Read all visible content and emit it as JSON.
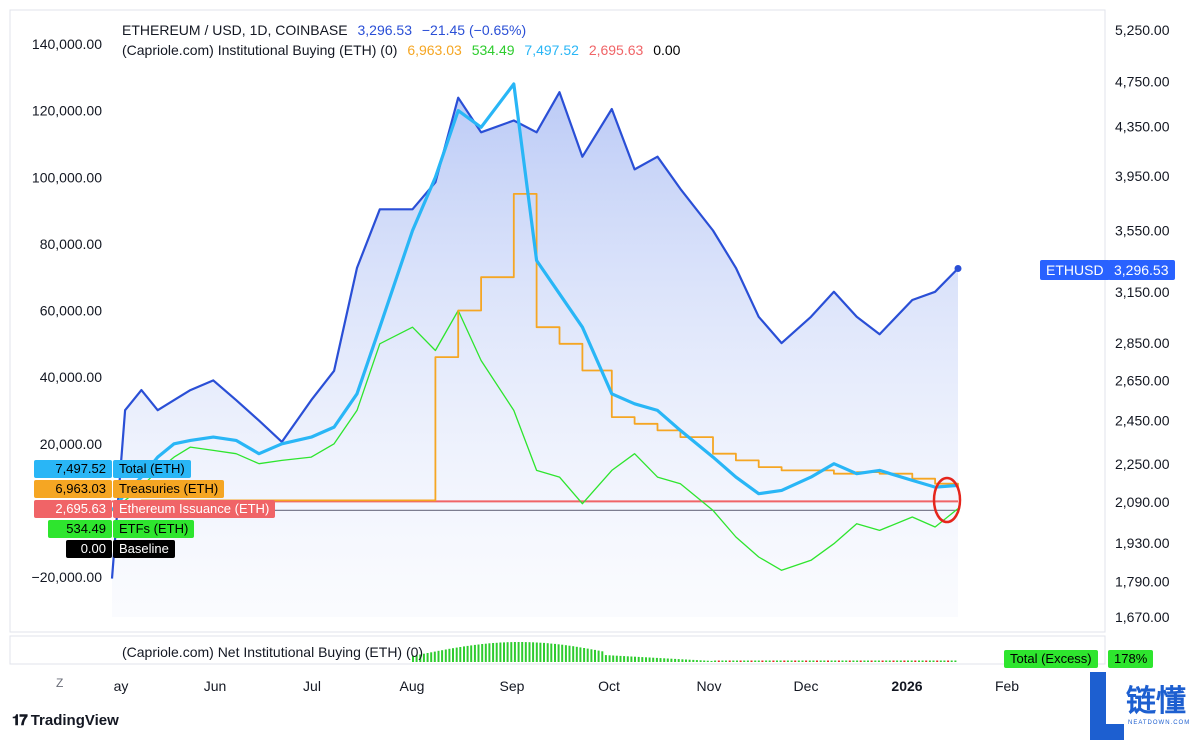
{
  "header": {
    "symbol": "ETHEREUM / USD, 1D, COINBASE",
    "price": "3,296.53",
    "change": "−21.45 (−0.65%)",
    "indicator": "(Capriole.com) Institutional Buying (ETH) (0)",
    "ind_values": [
      "6,963.03",
      "534.49",
      "7,497.52",
      "2,695.63",
      "0.00"
    ]
  },
  "legend_tags": [
    {
      "value": "7,497.52",
      "label": "Total (ETH)",
      "color": "#29b6f6"
    },
    {
      "value": "6,963.03",
      "label": "Treasuries (ETH)",
      "color": "#f5a623"
    },
    {
      "value": "2,695.63",
      "label": "Ethereum Issuance (ETH)",
      "color": "#f06467"
    },
    {
      "value": "534.49",
      "label": "ETFs (ETH)",
      "color": "#2ee52e"
    },
    {
      "value": "0.00",
      "label": "Baseline",
      "color": "#000000"
    }
  ],
  "price_tag": {
    "symbol": "ETHUSD",
    "value": "3,296.53",
    "color": "#2962ff"
  },
  "sub_pane": {
    "label": "(Capriole.com) Net Institutional Buying (ETH) (0)",
    "right_label": "Total (Excess)",
    "right_value": "178%"
  },
  "x_labels": [
    "ay",
    "Jun",
    "Jul",
    "Aug",
    "Sep",
    "Oct",
    "Nov",
    "Dec",
    "2026",
    "Feb"
  ],
  "branding": {
    "tv": "TradingView",
    "wm_cn": "链懂",
    "wm_sub": "NEATDOWN.COM"
  },
  "colors": {
    "eth": "#2a4fd6",
    "total": "#29b6f6",
    "treasuries": "#f5a623",
    "issuance": "#f06467",
    "etfs": "#2ee52e",
    "baseline": "#7d7d90"
  },
  "chart_data": {
    "type": "line",
    "title": "ETHEREUM / USD, 1D, COINBASE",
    "x": [
      "2025-05-01",
      "2025-05-05",
      "2025-05-10",
      "2025-05-15",
      "2025-05-20",
      "2025-05-25",
      "2025-06-01",
      "2025-06-08",
      "2025-06-15",
      "2025-06-22",
      "2025-07-01",
      "2025-07-08",
      "2025-07-15",
      "2025-07-22",
      "2025-08-01",
      "2025-08-08",
      "2025-08-15",
      "2025-08-22",
      "2025-09-01",
      "2025-09-08",
      "2025-09-15",
      "2025-09-22",
      "2025-10-01",
      "2025-10-08",
      "2025-10-15",
      "2025-10-22",
      "2025-11-01",
      "2025-11-08",
      "2025-11-15",
      "2025-11-22",
      "2025-12-01",
      "2025-12-08",
      "2025-12-15",
      "2025-12-22",
      "2026-01-01",
      "2026-01-08",
      "2026-01-15"
    ],
    "y_right_axis": {
      "label": "ETHUSD",
      "ticks": [
        1670,
        1790,
        1930,
        2090,
        2250,
        2450,
        2650,
        2850,
        3150,
        3550,
        3950,
        4350,
        4750,
        5250
      ],
      "scale": "log"
    },
    "y_left_axis": {
      "ticks": [
        -20000,
        0,
        20000,
        40000,
        60000,
        80000,
        100000,
        120000,
        140000
      ]
    },
    "series": [
      {
        "name": "ETHEREUM / USD",
        "axis": "right",
        "values": [
          1800,
          2500,
          2600,
          2500,
          2550,
          2600,
          2650,
          2550,
          2450,
          2350,
          2550,
          2700,
          3300,
          3700,
          3700,
          3900,
          4600,
          4300,
          4400,
          4300,
          4650,
          4100,
          4500,
          4000,
          4100,
          3850,
          3550,
          3300,
          3000,
          2850,
          3000,
          3150,
          3000,
          2900,
          3100,
          3150,
          3296.53
        ]
      },
      {
        "name": "Total (ETH)",
        "axis": "left",
        "values": [
          0,
          5000,
          10000,
          16000,
          20000,
          21000,
          22000,
          21000,
          17000,
          20000,
          22000,
          25000,
          35000,
          55000,
          84000,
          100000,
          120000,
          115000,
          128000,
          75000,
          65000,
          55000,
          35000,
          32000,
          30000,
          24000,
          16000,
          10000,
          5000,
          6000,
          10000,
          14000,
          11000,
          12000,
          9000,
          7000,
          7497.52
        ]
      },
      {
        "name": "Treasuries (ETH)",
        "axis": "left",
        "values": [
          0,
          0,
          3000,
          3000,
          3000,
          3000,
          3000,
          3000,
          3000,
          3000,
          3000,
          3000,
          3000,
          3000,
          3000,
          46000,
          60000,
          70000,
          95000,
          55000,
          50000,
          42000,
          28000,
          26000,
          24000,
          22000,
          17000,
          15000,
          13000,
          12000,
          12000,
          11000,
          11500,
          11000,
          9500,
          8000,
          6963.03
        ]
      },
      {
        "name": "Ethereum Issuance (ETH)",
        "axis": "left",
        "values": [
          2695.63,
          2695.63,
          2695.63,
          2695.63,
          2695.63,
          2695.63,
          2695.63,
          2695.63,
          2695.63,
          2695.63,
          2695.63,
          2695.63,
          2695.63,
          2695.63,
          2695.63,
          2695.63,
          2695.63,
          2695.63,
          2695.63,
          2695.63,
          2695.63,
          2695.63,
          2695.63,
          2695.63,
          2695.63,
          2695.63,
          2695.63,
          2695.63,
          2695.63,
          2695.63,
          2695.63,
          2695.63,
          2695.63,
          2695.63,
          2695.63,
          2695.63,
          2695.63
        ]
      },
      {
        "name": "ETFs (ETH)",
        "axis": "left",
        "values": [
          0,
          3000,
          7000,
          12000,
          16000,
          19000,
          18000,
          17000,
          14000,
          15000,
          16000,
          20000,
          30000,
          50000,
          55000,
          48000,
          60000,
          45000,
          30000,
          12000,
          10000,
          2000,
          12000,
          17000,
          10000,
          8000,
          0,
          -8000,
          -14000,
          -18000,
          -15000,
          -10000,
          -4000,
          -6000,
          -2000,
          -5000,
          534.49
        ]
      },
      {
        "name": "Baseline",
        "axis": "left",
        "values": [
          0,
          0,
          0,
          0,
          0,
          0,
          0,
          0,
          0,
          0,
          0,
          0,
          0,
          0,
          0,
          0,
          0,
          0,
          0,
          0,
          0,
          0,
          0,
          0,
          0,
          0,
          0,
          0,
          0,
          0,
          0,
          0,
          0,
          0,
          0,
          0,
          0
        ]
      }
    ]
  }
}
